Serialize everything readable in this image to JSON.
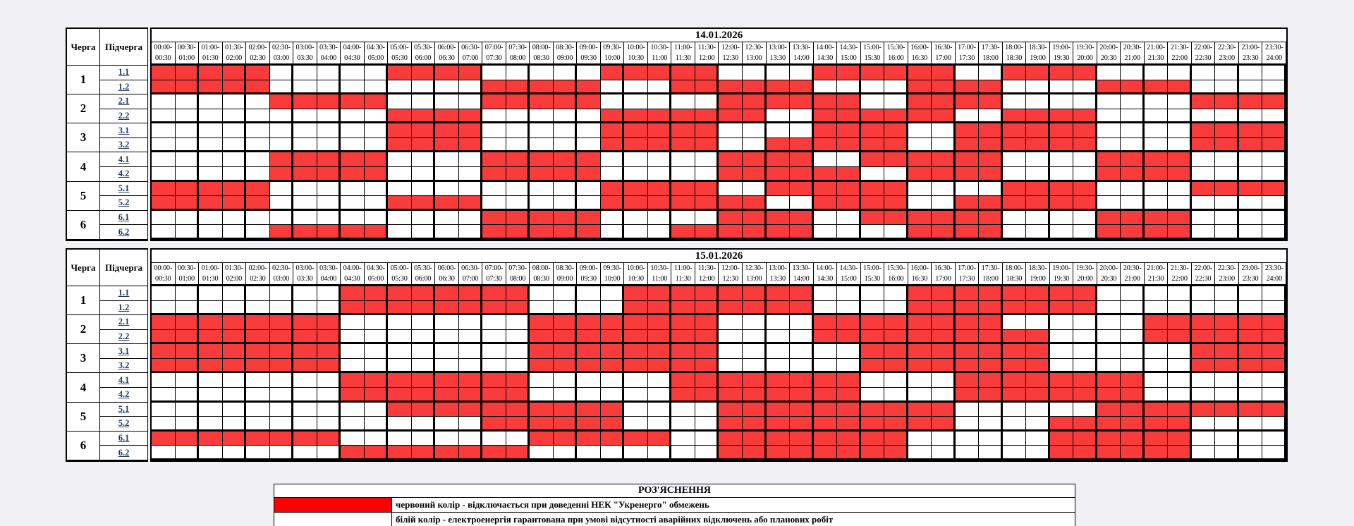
{
  "page": {
    "background": "#f0f0f5"
  },
  "colors": {
    "cell_red": "#f93b3b",
    "cell_white": "#ffffff",
    "legend_red": "#fa0000",
    "link_navy": "#1f3864"
  },
  "header_labels": {
    "queue": "Черга",
    "subqueue": "Підчерга"
  },
  "time_slots": [
    {
      "from": "00:00",
      "to": "00:30"
    },
    {
      "from": "00:30",
      "to": "01:00"
    },
    {
      "from": "01:00",
      "to": "01:30"
    },
    {
      "from": "01:30",
      "to": "02:00"
    },
    {
      "from": "02:00",
      "to": "02:30"
    },
    {
      "from": "02:30",
      "to": "03:00"
    },
    {
      "from": "03:00",
      "to": "03:30"
    },
    {
      "from": "03:30",
      "to": "04:00"
    },
    {
      "from": "04:00",
      "to": "04:30"
    },
    {
      "from": "04:30",
      "to": "05:00"
    },
    {
      "from": "05:00",
      "to": "05:30"
    },
    {
      "from": "05:30",
      "to": "06:00"
    },
    {
      "from": "06:00",
      "to": "06:30"
    },
    {
      "from": "06:30",
      "to": "07:00"
    },
    {
      "from": "07:00",
      "to": "07:30"
    },
    {
      "from": "07:30",
      "to": "08:00"
    },
    {
      "from": "08:00",
      "to": "08:30"
    },
    {
      "from": "08:30",
      "to": "09:00"
    },
    {
      "from": "09:00",
      "to": "09:30"
    },
    {
      "from": "09:30",
      "to": "10:00"
    },
    {
      "from": "10:00",
      "to": "10:30"
    },
    {
      "from": "10:30",
      "to": "11:00"
    },
    {
      "from": "11:00",
      "to": "11:30"
    },
    {
      "from": "11:30",
      "to": "12:00"
    },
    {
      "from": "12:00",
      "to": "12:30"
    },
    {
      "from": "12:30",
      "to": "13:00"
    },
    {
      "from": "13:00",
      "to": "13:30"
    },
    {
      "from": "13:30",
      "to": "14:00"
    },
    {
      "from": "14:00",
      "to": "14:30"
    },
    {
      "from": "14:30",
      "to": "15:00"
    },
    {
      "from": "15:00",
      "to": "15:30"
    },
    {
      "from": "15:30",
      "to": "16:00"
    },
    {
      "from": "16:00",
      "to": "16:30"
    },
    {
      "from": "16:30",
      "to": "17:00"
    },
    {
      "from": "17:00",
      "to": "17:30"
    },
    {
      "from": "17:30",
      "to": "18:00"
    },
    {
      "from": "18:00",
      "to": "18:30"
    },
    {
      "from": "18:30",
      "to": "19:00"
    },
    {
      "from": "19:00",
      "to": "19:30"
    },
    {
      "from": "19:30",
      "to": "20:00"
    },
    {
      "from": "20:00",
      "to": "20:30"
    },
    {
      "from": "20:30",
      "to": "21:00"
    },
    {
      "from": "21:00",
      "to": "21:30"
    },
    {
      "from": "21:30",
      "to": "22:00"
    },
    {
      "from": "22:00",
      "to": "22:30"
    },
    {
      "from": "22:30",
      "to": "23:00"
    },
    {
      "from": "23:00",
      "to": "23:30"
    },
    {
      "from": "23:30",
      "to": "24:00"
    }
  ],
  "queues": [
    {
      "number": "1",
      "subs": [
        "1.1",
        "1.2"
      ]
    },
    {
      "number": "2",
      "subs": [
        "2.1",
        "2.2"
      ]
    },
    {
      "number": "3",
      "subs": [
        "3.1",
        "3.2"
      ]
    },
    {
      "number": "4",
      "subs": [
        "4.1",
        "4.2"
      ]
    },
    {
      "number": "5",
      "subs": [
        "5.1",
        "5.2"
      ]
    },
    {
      "number": "6",
      "subs": [
        "6.1",
        "6.2"
      ]
    }
  ],
  "schedules": [
    {
      "date": "14.01.2026",
      "rows": {
        "1.1": "111110000011110000011111000011111100111100000000",
        "1.2": "111110000000001111100011111100001111000011110000",
        "2.1": "000001111100001111100000111111001111000000001111",
        "2.2": "000000000011110000011111110011111100111100000000",
        "3.1": "000000000011110000011111000011110011111100001111",
        "3.2": "000000000011110000011111001111110011111100001111",
        "4.1": "000001111100001111100000111100111111000011110000",
        "4.2": "000001111100001111100000111111001111000011110000",
        "5.1": "111110000000000000011111001111110000111100001111",
        "5.2": "111110000011110000011111110011110011111100000000",
        "6.1": "000000000000001111100000111100111111000011110000",
        "6.2": "000001111100001111100011111100001111000011110000"
      }
    },
    {
      "date": "15.01.2026",
      "rows": {
        "1.1": "000000001111111100001111111100001111111100000000",
        "1.2": "000000001111111100001111111100001111111100000000",
        "2.1": "111111110000000011111111000011111111000000111111",
        "2.2": "111111110000000011111111000011111111110000111111",
        "3.1": "111111110000000011111111000000111111110000001111",
        "3.2": "111111110000000011111111000000111111110000001111",
        "4.1": "000000001111111100000011111111000011111111000000",
        "4.2": "000000001111111100000011111111000011111111000000",
        "5.1": "000000000011111111110000111111111100000011111111",
        "5.2": "000000000000001111110000111111111100001111110000",
        "6.1": "111111110000000011111100111111110000001111110000",
        "6.2": "000000001111111100000000111111110000001111110000"
      }
    }
  ],
  "legend": {
    "title": "РОЗ'ЯСНЕННЯ",
    "items": [
      {
        "color": "#fa0000",
        "label": "червоний колір - відключається при доведенні НЕК \"Укренерго\" обмежень"
      },
      {
        "color": "#ffffff",
        "label": "білій колір - електроенергія гарантована при умові відсутності аварійних відключень або планових робіт"
      }
    ]
  }
}
